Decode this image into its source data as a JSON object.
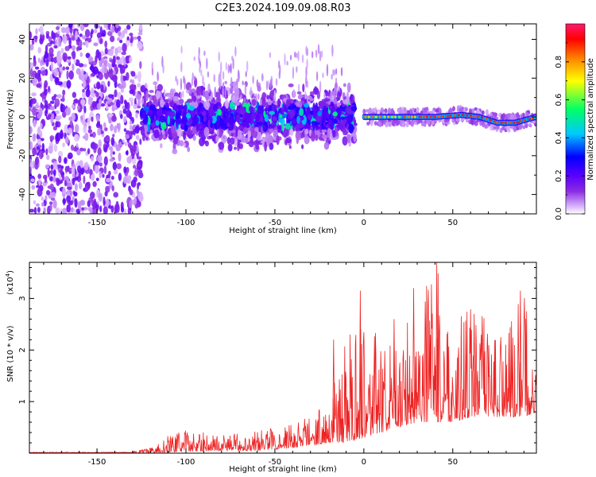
{
  "title": "C2E3.2024.109.09.08.R03",
  "chart_data": [
    {
      "type": "heatmap",
      "xlabel": "Height of straight line (km)",
      "ylabel": "Frequency (Hz)",
      "xlim": [
        -188,
        97
      ],
      "ylim": [
        -50,
        48
      ],
      "xticks": [
        -150,
        -100,
        -50,
        0,
        50
      ],
      "yticks": [
        -40,
        -20,
        0,
        20,
        40
      ],
      "colorbar": {
        "label": "Normalized spectral amplitude",
        "range": [
          0,
          1
        ],
        "ticks": [
          "0.0",
          "0.2",
          "0.4",
          "0.6",
          "0.8"
        ],
        "colors": [
          "#ffffff",
          "#d9b3ff",
          "#8a2be2",
          "#5a00ff",
          "#0000ff",
          "#00c8ff",
          "#00ff66",
          "#ffff00",
          "#ff8000",
          "#ff0000",
          "#ff1a6e"
        ]
      },
      "segments": [
        {
          "x_range": [
            -188,
            -125
          ],
          "freq_spread": [
            -50,
            48
          ],
          "amplitude": 0.15,
          "description": "broadband noise"
        },
        {
          "x_range": [
            -125,
            -5
          ],
          "freq_center": 0,
          "freq_spread": [
            -20,
            20
          ],
          "amplitude": 0.3
        },
        {
          "x_range": [
            0,
            97
          ],
          "freq_center_points": [
            [
              0,
              0
            ],
            [
              20,
              0
            ],
            [
              40,
              0
            ],
            [
              55,
              1
            ],
            [
              65,
              0
            ],
            [
              75,
              -3
            ],
            [
              85,
              -3
            ],
            [
              97,
              0
            ]
          ],
          "freq_spread": [
            -3,
            3
          ],
          "amplitude": 0.9
        }
      ]
    },
    {
      "type": "line",
      "xlabel": "Height of straight line (km)",
      "ylabel": "SNR (10 * v/v)",
      "yscale_note": "(x10",
      "yscale_exp": "4",
      "xlim": [
        -188,
        97
      ],
      "ylim": [
        0,
        3.7
      ],
      "xticks": [
        -150,
        -100,
        -50,
        0,
        50
      ],
      "yticks": [
        1,
        2,
        3
      ],
      "color": "#ee2222",
      "envelope": {
        "x": [
          -188,
          -130,
          -120,
          -110,
          -100,
          -80,
          -60,
          -40,
          -20,
          -10,
          0,
          10,
          20,
          30,
          40,
          50,
          60,
          70,
          80,
          90,
          97
        ],
        "upper": [
          0.03,
          0.04,
          0.1,
          0.35,
          0.45,
          0.35,
          0.45,
          0.6,
          1.0,
          2.2,
          3.1,
          2.0,
          2.3,
          3.0,
          3.7,
          2.5,
          2.9,
          2.6,
          2.4,
          3.15,
          1.8
        ],
        "lower": [
          0.0,
          0.0,
          0.0,
          0.02,
          0.03,
          0.05,
          0.05,
          0.1,
          0.2,
          0.2,
          0.3,
          0.4,
          0.5,
          0.6,
          0.6,
          0.6,
          0.7,
          0.7,
          0.7,
          0.7,
          0.8
        ]
      },
      "peaks": [
        {
          "x": -17,
          "y": 2.2
        },
        {
          "x": -2,
          "y": 3.15
        },
        {
          "x": 17,
          "y": 2.6
        },
        {
          "x": 28,
          "y": 3.2
        },
        {
          "x": 41,
          "y": 3.7
        },
        {
          "x": 62,
          "y": 2.7
        },
        {
          "x": 88,
          "y": 3.15
        }
      ]
    }
  ]
}
